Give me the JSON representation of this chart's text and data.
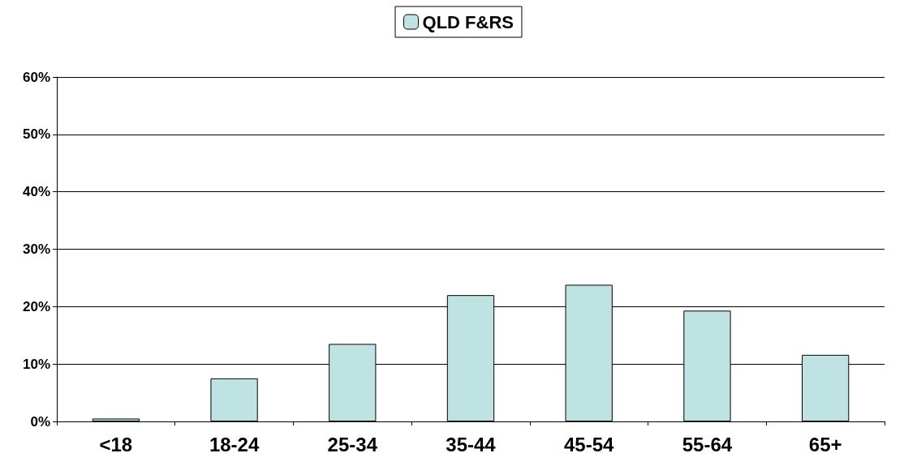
{
  "chart_data": {
    "type": "bar",
    "categories": [
      "<18",
      "18-24",
      "25-34",
      "35-44",
      "45-54",
      "55-64",
      "65+"
    ],
    "series": [
      {
        "name": "QLD F&RS",
        "color": "#bfe3e3",
        "values": [
          0.5,
          7.5,
          13.5,
          22,
          23.8,
          19.3,
          11.6
        ]
      }
    ],
    "ylim": [
      0,
      60
    ],
    "yticks": [
      {
        "value": 0,
        "label": "0%"
      },
      {
        "value": 10,
        "label": "10%"
      },
      {
        "value": 20,
        "label": "20%"
      },
      {
        "value": 30,
        "label": "30%"
      },
      {
        "value": 40,
        "label": "40%"
      },
      {
        "value": 50,
        "label": "50%"
      },
      {
        "value": 60,
        "label": "60%"
      }
    ],
    "grid": "y",
    "legend": "top"
  }
}
